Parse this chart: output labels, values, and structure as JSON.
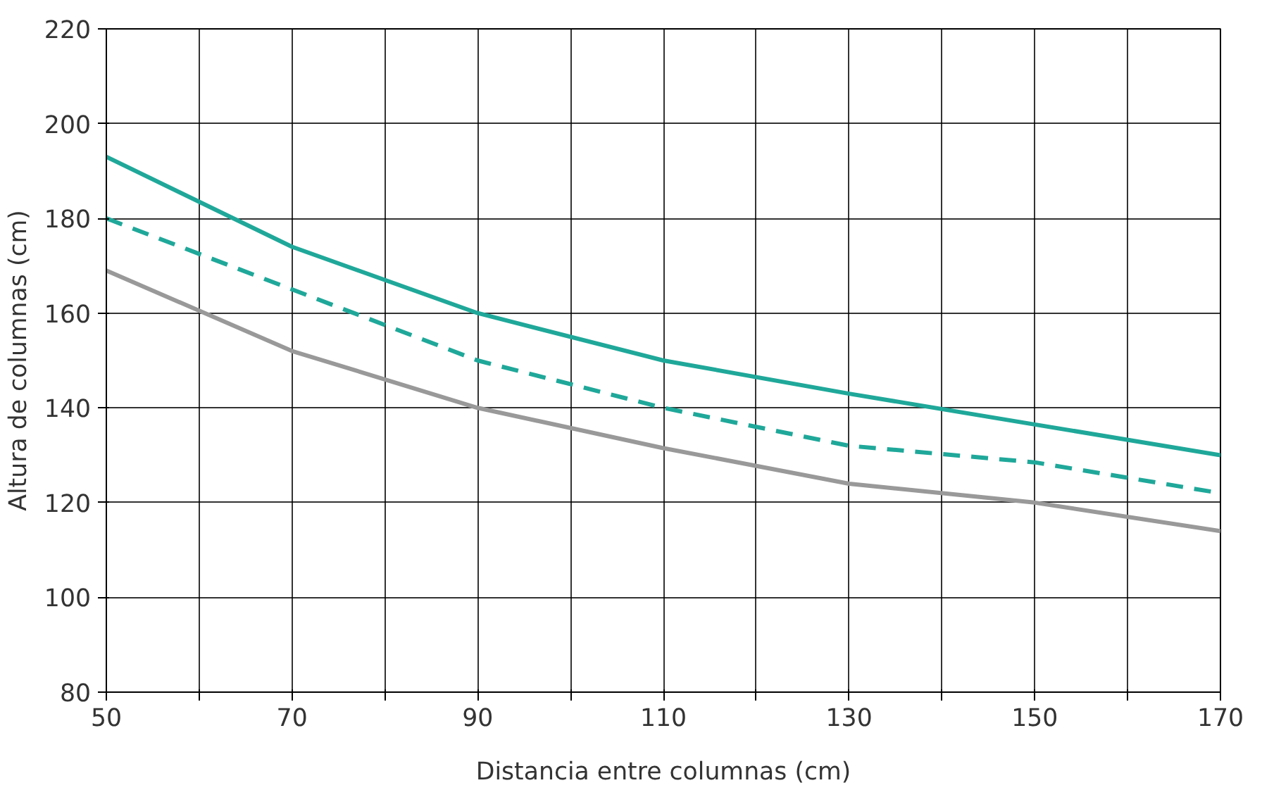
{
  "chart_data": {
    "type": "line",
    "xlabel": "Distancia entre columnas (cm)",
    "ylabel": "Altura de columnas (cm)",
    "x": [
      50,
      70,
      90,
      110,
      130,
      150,
      170
    ],
    "series": [
      {
        "color": "#1fa89a",
        "line_style": "solid",
        "values": [
          193,
          174,
          160,
          150,
          143,
          136.5,
          130
        ]
      },
      {
        "color": "#1fa89a",
        "line_style": "dashed",
        "values": [
          180,
          165,
          150,
          140,
          132,
          128.5,
          122
        ]
      },
      {
        "color": "#999999",
        "line_style": "solid",
        "values": [
          169,
          152,
          140,
          131.5,
          124,
          120,
          114
        ]
      }
    ],
    "xlim": [
      50,
      170
    ],
    "ylim": [
      80,
      220
    ],
    "xticks": [
      50,
      {
        "value": 60,
        "label": null
      },
      70,
      {
        "value": 80,
        "label": null
      },
      90,
      {
        "value": 100,
        "label": null
      },
      110,
      {
        "value": 120,
        "label": null
      },
      130,
      {
        "value": 140,
        "label": null
      },
      150,
      {
        "value": 160,
        "label": null
      },
      170
    ],
    "yticks": [
      80,
      100,
      120,
      140,
      160,
      180,
      200,
      220
    ],
    "grid": true,
    "marker": "none"
  }
}
